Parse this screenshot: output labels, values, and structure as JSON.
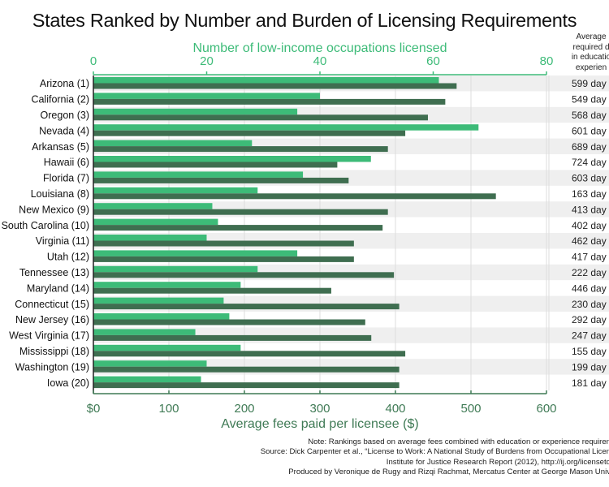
{
  "title": "States Ranked by Number and Burden of Licensing Requirements",
  "days_header": [
    "Average",
    "required d",
    "in educatio",
    "experien"
  ],
  "footer": [
    "Note: Rankings based on average fees combined with education or experience requiren",
    "Source: Dick Carpenter et al., “License to Work: A National Study of Burdens from Occupational Licen",
    "Institute for Justice Research Report (2012), http://ij.org/licenseto",
    "Produced by Veronique de Rugy and Rizqi Rachmat, Mercatus Center at George Mason Univ"
  ],
  "colors": {
    "occupations": "#3dbb78",
    "fees": "#3f6e50",
    "band": "#efefef",
    "top_axis": "#3dbb78",
    "bottom_axis": "#3f7a55"
  },
  "chart_data": {
    "type": "bar",
    "orientation": "horizontal",
    "title": "States Ranked by Number and Burden of Licensing Requirements",
    "categories": [
      "Arizona (1)",
      "California (2)",
      "Oregon (3)",
      "Nevada (4)",
      "Arkansas (5)",
      "Hawaii (6)",
      "Florida (7)",
      "Louisiana (8)",
      "New Mexico (9)",
      "South Carolina (10)",
      "Virginia (11)",
      "Utah (12)",
      "Tennessee (13)",
      "Maryland (14)",
      "Connecticut (15)",
      "New Jersey (16)",
      "West Virginia (17)",
      "Mississippi (18)",
      "Washington (19)",
      "Iowa (20)"
    ],
    "series": [
      {
        "name": "Number of low-income occupations licensed",
        "axis": "top",
        "values": [
          61,
          40,
          36,
          68,
          28,
          49,
          37,
          29,
          21,
          22,
          20,
          36,
          29,
          26,
          23,
          24,
          18,
          26,
          20,
          19
        ]
      },
      {
        "name": "Average fees paid per licensee ($)",
        "axis": "bottom",
        "values": [
          481,
          466,
          443,
          413,
          390,
          323,
          338,
          533,
          390,
          383,
          345,
          345,
          398,
          315,
          405,
          360,
          368,
          413,
          405,
          405
        ]
      }
    ],
    "days_labels": [
      "599 day",
      "549 day",
      "568 day",
      "601 day",
      "689 day",
      "724 day",
      "603 day",
      "163 day",
      "413 day",
      "402 day",
      "462 day",
      "417 day",
      "222 day",
      "446 day",
      "230 day",
      "292 day",
      "247 day",
      "155 day",
      "199 day",
      "181 day"
    ],
    "top_axis": {
      "label": "Number of low-income occupations licensed",
      "range": [
        0,
        80
      ],
      "ticks": [
        "0",
        "20",
        "40",
        "60",
        "80"
      ],
      "tick_values": [
        0,
        20,
        40,
        60,
        80
      ]
    },
    "bottom_axis": {
      "label": "Average fees paid per licensee ($)",
      "range": [
        0,
        600
      ],
      "ticks": [
        "$0",
        "100",
        "200",
        "300",
        "400",
        "500",
        "600"
      ],
      "tick_values": [
        0,
        100,
        200,
        300,
        400,
        500,
        600
      ]
    },
    "grid": true
  }
}
